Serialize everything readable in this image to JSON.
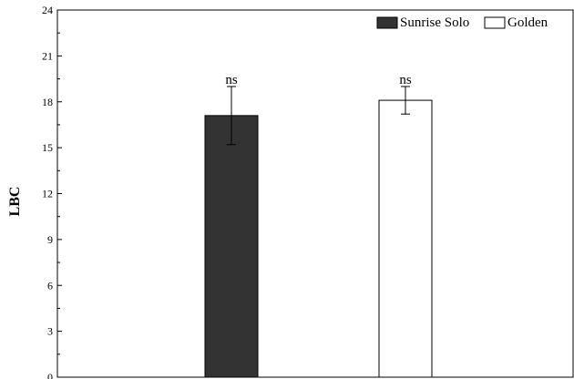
{
  "chart_data": {
    "type": "bar",
    "ylabel": "LBC",
    "xlabel": "",
    "ylim": [
      0,
      24
    ],
    "yticks": [
      "0",
      "3",
      "6",
      "9",
      "12",
      "15",
      "18",
      "21",
      "24"
    ],
    "grid": false,
    "legend": {
      "position": "top-right"
    },
    "series": [
      {
        "name": "Sunrise Solo",
        "value": 17.1,
        "error": 1.9,
        "annotation": "ns",
        "fill": "#333333"
      },
      {
        "name": "Golden",
        "value": 18.1,
        "error": 0.9,
        "annotation": "ns",
        "fill": "#ffffff"
      }
    ]
  }
}
